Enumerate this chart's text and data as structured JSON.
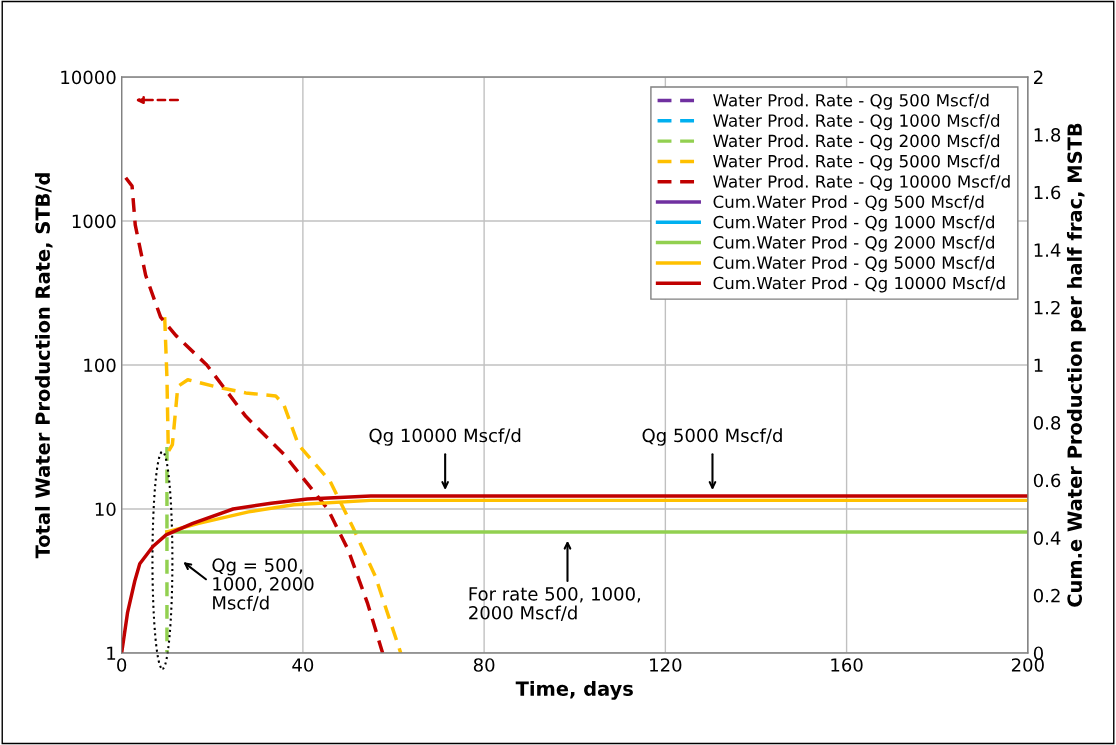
{
  "chart_data": {
    "type": "line",
    "xlabel": "Time, days",
    "ylabel": "Total Water Production Rate, STB/d",
    "y2label": "Cum.e Water Production per half frac, MSTB",
    "xlim": [
      0,
      200
    ],
    "xticks": [
      0,
      40,
      80,
      120,
      160,
      200
    ],
    "ylim": [
      1,
      10000
    ],
    "yticks": [
      1,
      10,
      100,
      1000,
      10000
    ],
    "y2lim": [
      0,
      2
    ],
    "y2ticks": [
      0,
      0.2,
      0.4,
      0.6,
      0.8,
      1,
      1.2,
      1.4,
      1.6,
      1.8,
      2
    ],
    "log": "y",
    "grid": true,
    "legend": "top right",
    "series": [
      {
        "name": "Water Prod. Rate - Qg 500 Mscf/d",
        "color": "#7030a0",
        "line_style": "dashed"
      },
      {
        "name": "Water Prod. Rate - Qg 1000 Mscf/d",
        "color": "#00b0f0",
        "line_style": "dashed"
      },
      {
        "name": "Water Prod. Rate - Qg 2000 Mscf/d",
        "color": "#92d050",
        "line_style": "dashed",
        "x": [
          10,
          10
        ],
        "values": [
          27,
          1
        ]
      },
      {
        "name": "Water Prod. Rate - Qg 5000 Mscf/d",
        "color": "#ffc000",
        "line_style": "dashed",
        "x": [
          9.5,
          10,
          10.3,
          11.2,
          12.4,
          14.6,
          20.5,
          27.4,
          34,
          35.8,
          39,
          46,
          51,
          56,
          61.6
        ],
        "values": [
          215,
          81,
          25,
          28,
          71,
          79,
          71,
          64,
          61,
          53,
          28,
          15.6,
          7.5,
          3.4,
          1
        ]
      },
      {
        "name": "Water Prod. Rate - Qg 10000 Mscf/d",
        "color": "#c00000",
        "line_style": "dashed",
        "x": [
          0.9,
          2.3,
          3,
          5.3,
          8.6,
          12,
          18.8,
          27.4,
          35.8,
          45.5,
          50,
          54.3,
          57.6
        ],
        "values": [
          2000,
          1750,
          940,
          420,
          215,
          160,
          100,
          44,
          24,
          10,
          5.2,
          2.2,
          1
        ]
      },
      {
        "name": "Cum.Water Prod - Qg 500 Mscf/d",
        "color": "#7030a0",
        "line_style": "solid",
        "axis": "y2"
      },
      {
        "name": "Cum.Water Prod - Qg 1000 Mscf/d",
        "color": "#00b0f0",
        "line_style": "solid",
        "axis": "y2"
      },
      {
        "name": "Cum.Water Prod - Qg 2000 Mscf/d",
        "color": "#92d050",
        "line_style": "solid",
        "axis": "y2",
        "x": [
          10,
          200
        ],
        "values": [
          0.42,
          0.42
        ]
      },
      {
        "name": "Cum.Water Prod - Qg 5000 Mscf/d",
        "color": "#ffc000",
        "line_style": "solid",
        "axis": "y2",
        "x": [
          10,
          17,
          28,
          38,
          55,
          200
        ],
        "values": [
          0.42,
          0.45,
          0.49,
          0.515,
          0.53,
          0.53
        ]
      },
      {
        "name": "Cum.Water Prod - Qg 10000 Mscf/d",
        "color": "#c00000",
        "line_style": "solid",
        "axis": "y2",
        "x": [
          0,
          1.3,
          2.9,
          4,
          6.9,
          9.8,
          15.7,
          24.6,
          33,
          41,
          55,
          200
        ],
        "values": [
          0,
          0.14,
          0.25,
          0.31,
          0.37,
          0.41,
          0.45,
          0.5,
          0.52,
          0.535,
          0.545,
          0.545
        ]
      }
    ],
    "annotations": [
      "Qg 10000 Mscf/d",
      "Qg 5000 Mscf/d",
      "For rate 500, 1000,\n2000 Mscf/d",
      "Qg = 500,\n1000, 2000\nMscf/d"
    ]
  }
}
